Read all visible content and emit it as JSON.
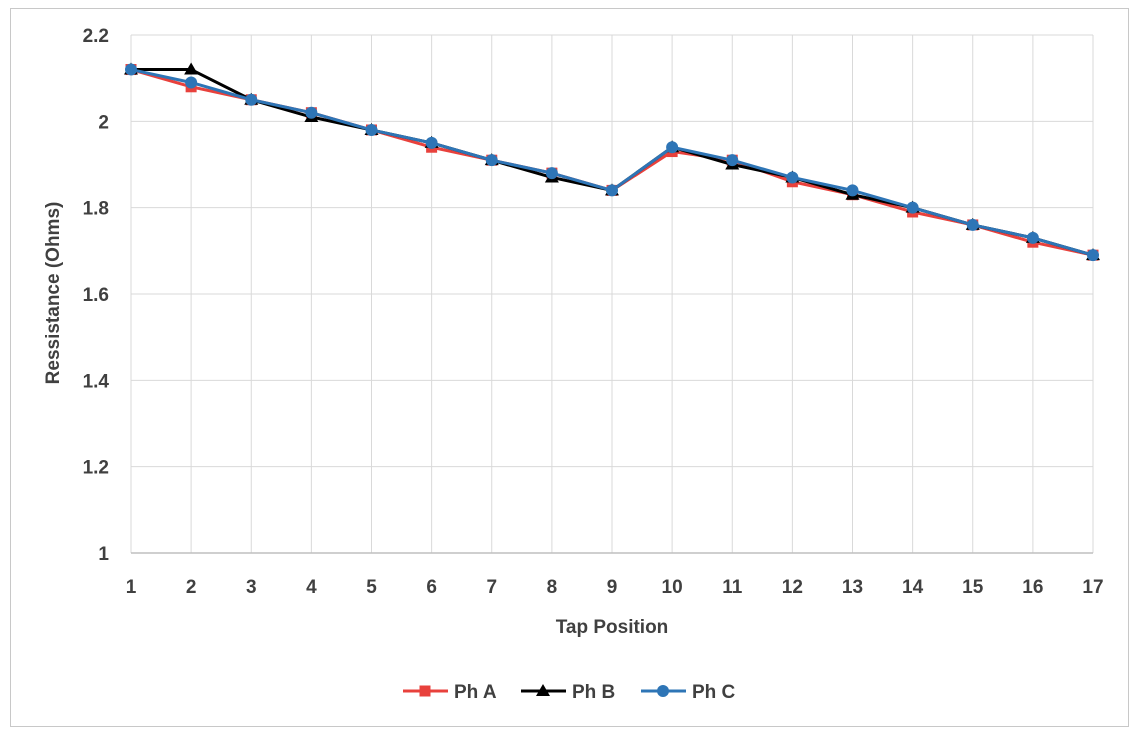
{
  "chart_data": {
    "type": "line",
    "title": "",
    "xlabel": "Tap Position",
    "ylabel": "Ressistance (Ohms)",
    "x": [
      1,
      2,
      3,
      4,
      5,
      6,
      7,
      8,
      9,
      10,
      11,
      12,
      13,
      14,
      15,
      16,
      17
    ],
    "xlim": [
      1,
      17
    ],
    "ylim": [
      1,
      2.2
    ],
    "yticks": [
      1,
      1.2,
      1.4,
      1.6,
      1.8,
      2,
      2.2
    ],
    "ytick_labels": [
      "1",
      "1.2",
      "1.4",
      "1.6",
      "1.8",
      "2",
      "2.2"
    ],
    "grid": true,
    "legend_position": "bottom",
    "series": [
      {
        "name": "Ph A",
        "color": "#e8413c",
        "marker": "square",
        "values": [
          2.12,
          2.08,
          2.05,
          2.02,
          1.98,
          1.94,
          1.91,
          1.88,
          1.84,
          1.93,
          1.91,
          1.86,
          1.83,
          1.79,
          1.76,
          1.72,
          1.69
        ]
      },
      {
        "name": "Ph B",
        "color": "#000000",
        "marker": "triangle",
        "values": [
          2.12,
          2.12,
          2.05,
          2.01,
          1.98,
          1.95,
          1.91,
          1.87,
          1.84,
          1.94,
          1.9,
          1.87,
          1.83,
          1.8,
          1.76,
          1.73,
          1.69
        ]
      },
      {
        "name": "Ph C",
        "color": "#2e75b6",
        "marker": "circle",
        "values": [
          2.12,
          2.09,
          2.05,
          2.02,
          1.98,
          1.95,
          1.91,
          1.88,
          1.84,
          1.94,
          1.91,
          1.87,
          1.84,
          1.8,
          1.76,
          1.73,
          1.69
        ]
      }
    ]
  }
}
